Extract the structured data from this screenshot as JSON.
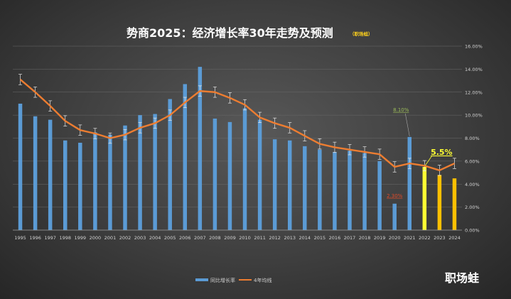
{
  "chart_data": {
    "type": "bar",
    "title": "势商2025：经济增长率30年走势及预测",
    "subtitle": "（职场蛙）",
    "categories": [
      "1995",
      "1996",
      "1997",
      "1998",
      "1999",
      "2000",
      "2001",
      "2002",
      "2003",
      "2004",
      "2005",
      "2006",
      "2007",
      "2008",
      "2009",
      "2010",
      "2011",
      "2012",
      "2013",
      "2014",
      "2015",
      "2016",
      "2017",
      "2018",
      "2019",
      "2020",
      "2021",
      "2022",
      "2023",
      "2024"
    ],
    "series": [
      {
        "name": "同比增长率",
        "type": "bar",
        "color": "#5b9bd5",
        "values": [
          11.0,
          9.9,
          9.6,
          7.8,
          7.6,
          8.5,
          8.3,
          9.1,
          10.0,
          10.1,
          11.4,
          12.7,
          14.2,
          9.7,
          9.4,
          10.6,
          9.6,
          7.9,
          7.8,
          7.3,
          7.0,
          6.8,
          6.9,
          6.7,
          6.0,
          2.3,
          8.1,
          5.5,
          4.8,
          4.5
        ],
        "highlight_colors": {
          "2022": "#ffff33",
          "2023": "#ffc000",
          "2024": "#ffc000"
        }
      },
      {
        "name": "4年均线",
        "type": "line",
        "color": "#ed7d31",
        "values": [
          13.1,
          12.0,
          10.8,
          9.5,
          8.7,
          8.4,
          8.0,
          8.3,
          8.9,
          9.3,
          10.0,
          11.1,
          12.1,
          12.0,
          11.5,
          10.9,
          9.8,
          9.3,
          8.9,
          8.2,
          7.5,
          7.2,
          7.0,
          6.8,
          6.6,
          5.5,
          5.8,
          5.6,
          5.2,
          5.8
        ]
      }
    ],
    "ylim": [
      0,
      16
    ],
    "yticks": [
      "0.00%",
      "2.00%",
      "4.00%",
      "6.00%",
      "8.00%",
      "10.00%",
      "12.00%",
      "14.00%",
      "16.00%"
    ],
    "y_axis_side": "right",
    "grid": true,
    "error_bars": true,
    "annotations": [
      {
        "text": "8.10%",
        "category": "2021",
        "value": 8.1,
        "color": "#9bbb59"
      },
      {
        "text": "2.30%",
        "category": "2020",
        "value": 2.3,
        "color": "#e04b2a"
      },
      {
        "text": "5.5%",
        "category": "2022",
        "value": 5.5,
        "color": "#ffff33"
      }
    ],
    "legend": {
      "position": "bottom",
      "items": [
        "同比增长率",
        "4年均线"
      ]
    }
  },
  "watermark": "职场蛙"
}
